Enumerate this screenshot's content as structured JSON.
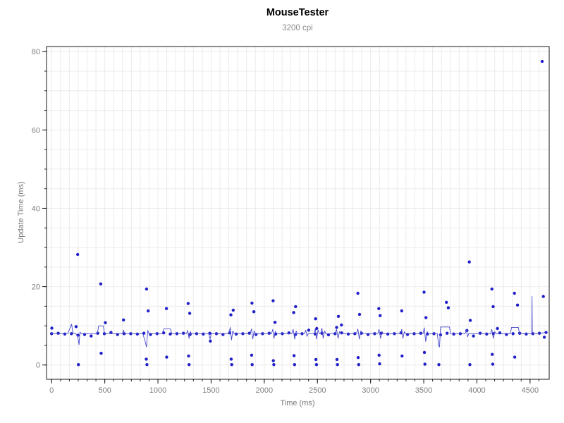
{
  "window": {
    "background": "#ffffff"
  },
  "chart_data": {
    "type": "scatter",
    "title": "MouseTester",
    "subtitle": "3200 cpi",
    "xlabel": "Time (ms)",
    "ylabel": "Update Time (ms)",
    "xlim": [
      -48,
      4680
    ],
    "ylim": [
      -3.65,
      81.3
    ],
    "x_major_ticks": [
      0,
      500,
      1000,
      1500,
      2000,
      2500,
      3000,
      3500,
      4000,
      4500
    ],
    "x_minor_interval": 83.3333,
    "x_minor_max": 4666,
    "y_major_ticks": [
      0,
      20,
      40,
      60,
      80
    ],
    "y_minor_interval": 5,
    "grid": true,
    "legend": "none",
    "colors": {
      "point": "#2020c8",
      "line": "#4444cc",
      "grid": "#ebebeb",
      "axis": "#1a1a1a",
      "tick_label": "#7f7f7f",
      "axis_title": "#7a7a7a",
      "title": "#000000",
      "subtitle": "#8a8a8a",
      "background": "#ffffff"
    },
    "series": [
      {
        "name": "update-time-points",
        "style": "points",
        "values": [
          [
            0,
            8.0
          ],
          [
            62,
            8.1
          ],
          [
            124,
            7.9
          ],
          [
            186,
            8.0
          ],
          [
            248,
            7.6
          ],
          [
            310,
            7.8
          ],
          [
            372,
            7.4
          ],
          [
            434,
            8.1
          ],
          [
            496,
            8.0
          ],
          [
            558,
            8.3
          ],
          [
            620,
            7.8
          ],
          [
            682,
            8.0
          ],
          [
            744,
            8.0
          ],
          [
            806,
            7.9
          ],
          [
            868,
            8.1
          ],
          [
            930,
            7.8
          ],
          [
            992,
            8.0
          ],
          [
            1054,
            8.2
          ],
          [
            1116,
            7.9
          ],
          [
            1178,
            8.0
          ],
          [
            1240,
            8.1
          ],
          [
            1302,
            7.8
          ],
          [
            1364,
            8.0
          ],
          [
            1426,
            7.9
          ],
          [
            1488,
            8.1
          ],
          [
            1550,
            8.0
          ],
          [
            1612,
            7.8
          ],
          [
            1674,
            8.2
          ],
          [
            1736,
            7.9
          ],
          [
            1798,
            8.0
          ],
          [
            1860,
            8.1
          ],
          [
            1922,
            7.8
          ],
          [
            1984,
            8.0
          ],
          [
            2046,
            8.1
          ],
          [
            2108,
            7.9
          ],
          [
            2170,
            8.0
          ],
          [
            2232,
            8.2
          ],
          [
            2294,
            7.8
          ],
          [
            2356,
            8.0
          ],
          [
            2418,
            8.9
          ],
          [
            2480,
            7.9
          ],
          [
            2542,
            8.1
          ],
          [
            2604,
            7.7
          ],
          [
            2666,
            8.0
          ],
          [
            2728,
            8.2
          ],
          [
            2790,
            7.9
          ],
          [
            2852,
            8.0
          ],
          [
            2914,
            8.1
          ],
          [
            2976,
            7.8
          ],
          [
            3038,
            8.0
          ],
          [
            3100,
            8.1
          ],
          [
            3162,
            7.9
          ],
          [
            3224,
            8.0
          ],
          [
            3286,
            8.2
          ],
          [
            3348,
            7.8
          ],
          [
            3410,
            8.0
          ],
          [
            3472,
            8.1
          ],
          [
            3534,
            7.9
          ],
          [
            3596,
            8.0
          ],
          [
            3658,
            7.7
          ],
          [
            3720,
            8.1
          ],
          [
            3782,
            7.9
          ],
          [
            3844,
            8.0
          ],
          [
            3906,
            8.8
          ],
          [
            3968,
            7.4
          ],
          [
            4030,
            8.1
          ],
          [
            4092,
            7.9
          ],
          [
            4154,
            8.0
          ],
          [
            4216,
            8.2
          ],
          [
            4278,
            7.8
          ],
          [
            4340,
            8.0
          ],
          [
            4402,
            8.1
          ],
          [
            4464,
            7.9
          ],
          [
            4526,
            8.0
          ],
          [
            4588,
            8.1
          ],
          [
            4650,
            8.3
          ],
          [
            2,
            9.4
          ],
          [
            230,
            9.8
          ],
          [
            245,
            28.2
          ],
          [
            252,
            0.1
          ],
          [
            462,
            20.7
          ],
          [
            466,
            3.0
          ],
          [
            505,
            10.8
          ],
          [
            676,
            11.5
          ],
          [
            890,
            1.5
          ],
          [
            893,
            19.4
          ],
          [
            896,
            0.1
          ],
          [
            908,
            13.8
          ],
          [
            1080,
            14.4
          ],
          [
            1082,
            2.0
          ],
          [
            1284,
            15.7
          ],
          [
            1288,
            2.3
          ],
          [
            1293,
            0.1
          ],
          [
            1299,
            13.2
          ],
          [
            1493,
            6.1
          ],
          [
            1686,
            12.8
          ],
          [
            1689,
            1.5
          ],
          [
            1694,
            0.1
          ],
          [
            1708,
            14.0
          ],
          [
            1881,
            2.5
          ],
          [
            1884,
            15.8
          ],
          [
            1886,
            0.1
          ],
          [
            1902,
            13.6
          ],
          [
            2083,
            16.4
          ],
          [
            2085,
            1.1
          ],
          [
            2090,
            0.1
          ],
          [
            2101,
            10.9
          ],
          [
            2277,
            13.4
          ],
          [
            2280,
            2.4
          ],
          [
            2285,
            0.1
          ],
          [
            2295,
            14.9
          ],
          [
            2483,
            11.8
          ],
          [
            2486,
            1.4
          ],
          [
            2491,
            0.1
          ],
          [
            2494,
            9.3
          ],
          [
            2681,
            9.6
          ],
          [
            2684,
            1.4
          ],
          [
            2689,
            0.1
          ],
          [
            2697,
            12.4
          ],
          [
            2726,
            10.2
          ],
          [
            2880,
            18.3
          ],
          [
            2883,
            1.9
          ],
          [
            2888,
            0.1
          ],
          [
            2896,
            12.9
          ],
          [
            3077,
            14.4
          ],
          [
            3080,
            2.5
          ],
          [
            3085,
            0.3
          ],
          [
            3090,
            12.6
          ],
          [
            3293,
            13.8
          ],
          [
            3296,
            2.3
          ],
          [
            3503,
            18.6
          ],
          [
            3506,
            3.2
          ],
          [
            3511,
            0.2
          ],
          [
            3521,
            12.1
          ],
          [
            3642,
            0.1
          ],
          [
            3713,
            16.0
          ],
          [
            3731,
            14.6
          ],
          [
            3929,
            26.3
          ],
          [
            3934,
            0.1
          ],
          [
            3938,
            11.4
          ],
          [
            4141,
            19.4
          ],
          [
            4144,
            2.7
          ],
          [
            4149,
            0.2
          ],
          [
            4153,
            14.9
          ],
          [
            4193,
            9.3
          ],
          [
            4353,
            18.3
          ],
          [
            4356,
            2.0
          ],
          [
            4382,
            15.3
          ],
          [
            4614,
            77.5
          ],
          [
            4625,
            17.5
          ],
          [
            4634,
            7.1
          ]
        ]
      },
      {
        "name": "update-time-line",
        "style": "line",
        "values": [
          [
            0,
            8
          ],
          [
            150,
            8
          ],
          [
            188,
            10.4
          ],
          [
            200,
            8.2
          ],
          [
            228,
            8
          ],
          [
            246,
            7.2
          ],
          [
            258,
            5.2
          ],
          [
            266,
            8.4
          ],
          [
            280,
            8
          ],
          [
            430,
            8
          ],
          [
            442,
            10
          ],
          [
            486,
            10
          ],
          [
            496,
            8.2
          ],
          [
            520,
            8
          ],
          [
            666,
            8
          ],
          [
            676,
            8.9
          ],
          [
            686,
            8
          ],
          [
            858,
            8
          ],
          [
            878,
            6.2
          ],
          [
            892,
            4.6
          ],
          [
            904,
            8.8
          ],
          [
            916,
            8
          ],
          [
            1040,
            8
          ],
          [
            1054,
            9.2
          ],
          [
            1118,
            9.2
          ],
          [
            1130,
            8
          ],
          [
            1268,
            8
          ],
          [
            1280,
            8.8
          ],
          [
            1292,
            6.8
          ],
          [
            1304,
            8.5
          ],
          [
            1316,
            8
          ],
          [
            1478,
            8
          ],
          [
            1490,
            6.6
          ],
          [
            1502,
            8
          ],
          [
            1668,
            8
          ],
          [
            1680,
            9.6
          ],
          [
            1692,
            6.4
          ],
          [
            1704,
            8.7
          ],
          [
            1716,
            8
          ],
          [
            1868,
            8
          ],
          [
            1880,
            9.2
          ],
          [
            1892,
            6.6
          ],
          [
            1904,
            8.7
          ],
          [
            1916,
            8
          ],
          [
            2068,
            8
          ],
          [
            2080,
            9.1
          ],
          [
            2092,
            6.8
          ],
          [
            2104,
            8.6
          ],
          [
            2116,
            8
          ],
          [
            2258,
            8
          ],
          [
            2272,
            9.1
          ],
          [
            2286,
            6.6
          ],
          [
            2300,
            8.7
          ],
          [
            2312,
            8
          ],
          [
            2378,
            8
          ],
          [
            2390,
            8.9
          ],
          [
            2402,
            7.3
          ],
          [
            2414,
            8
          ],
          [
            2468,
            8
          ],
          [
            2480,
            9.2
          ],
          [
            2492,
            6.6
          ],
          [
            2506,
            8.9
          ],
          [
            2518,
            8
          ],
          [
            2530,
            8
          ],
          [
            2542,
            9.4
          ],
          [
            2554,
            6.8
          ],
          [
            2568,
            8.7
          ],
          [
            2580,
            8
          ],
          [
            2668,
            8
          ],
          [
            2680,
            9.1
          ],
          [
            2694,
            6.8
          ],
          [
            2708,
            8.5
          ],
          [
            2720,
            8
          ],
          [
            2868,
            8
          ],
          [
            2880,
            9.2
          ],
          [
            2894,
            6.6
          ],
          [
            2908,
            8.7
          ],
          [
            2920,
            8
          ],
          [
            3068,
            8
          ],
          [
            3080,
            9.1
          ],
          [
            3094,
            6.8
          ],
          [
            3108,
            8.5
          ],
          [
            3120,
            8
          ],
          [
            3283,
            8
          ],
          [
            3293,
            9.1
          ],
          [
            3305,
            6.8
          ],
          [
            3317,
            8.5
          ],
          [
            3329,
            8
          ],
          [
            3493,
            8
          ],
          [
            3505,
            9.5
          ],
          [
            3519,
            6.0
          ],
          [
            3532,
            8.5
          ],
          [
            3544,
            8
          ],
          [
            3628,
            8
          ],
          [
            3638,
            5.2
          ],
          [
            3648,
            4.6
          ],
          [
            3658,
            9.7
          ],
          [
            3742,
            9.7
          ],
          [
            3752,
            8
          ],
          [
            3888,
            8
          ],
          [
            3900,
            8.9
          ],
          [
            3912,
            7.2
          ],
          [
            3924,
            8
          ],
          [
            4128,
            8
          ],
          [
            4140,
            9.1
          ],
          [
            4154,
            6.8
          ],
          [
            4168,
            8.5
          ],
          [
            4180,
            8
          ],
          [
            4315,
            8
          ],
          [
            4326,
            9.6
          ],
          [
            4390,
            9.6
          ],
          [
            4400,
            8
          ],
          [
            4512,
            8
          ],
          [
            4517,
            8.1
          ],
          [
            4519,
            17.5
          ],
          [
            4521,
            8.1
          ],
          [
            4560,
            8
          ],
          [
            4650,
            8.3
          ]
        ]
      }
    ]
  }
}
